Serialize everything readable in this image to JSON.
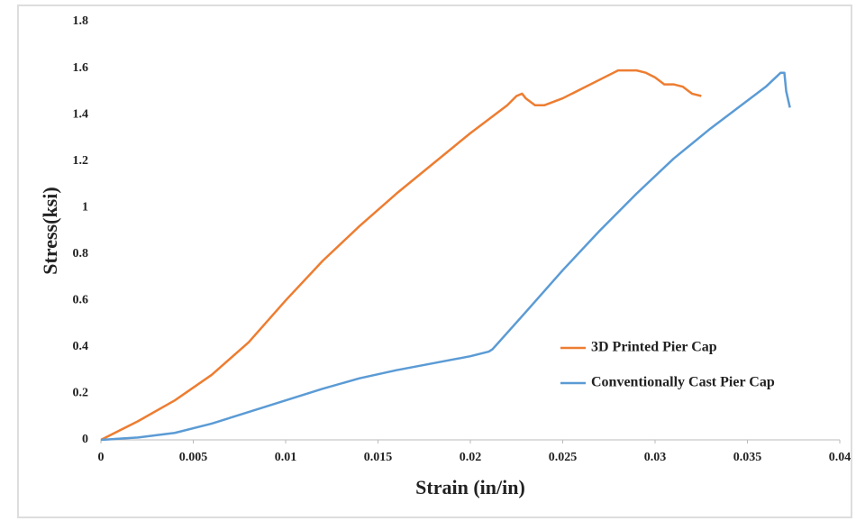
{
  "chart_data": {
    "type": "line",
    "x_label": "Strain (in/in)",
    "y_label": "Stress(ksi)",
    "xlim": [
      0,
      0.04
    ],
    "ylim": [
      0,
      1.8
    ],
    "xticks": [
      0,
      0.005,
      0.01,
      0.015,
      0.02,
      0.025,
      0.03,
      0.035,
      0.04
    ],
    "yticks": [
      0,
      0.2,
      0.4,
      0.6,
      0.8,
      1,
      1.2,
      1.4,
      1.6,
      1.8
    ],
    "grid": false,
    "legend": "center right",
    "series": [
      {
        "name": "3D Printed Pier Cap",
        "color": "#ed7d31",
        "x": [
          0,
          0.002,
          0.004,
          0.006,
          0.008,
          0.01,
          0.012,
          0.014,
          0.016,
          0.018,
          0.02,
          0.022,
          0.0225,
          0.0228,
          0.023,
          0.0235,
          0.024,
          0.025,
          0.026,
          0.027,
          0.028,
          0.029,
          0.0295,
          0.03,
          0.0305,
          0.031,
          0.0315,
          0.032,
          0.0325
        ],
        "values": [
          0,
          0.08,
          0.17,
          0.28,
          0.42,
          0.6,
          0.77,
          0.92,
          1.06,
          1.19,
          1.32,
          1.44,
          1.48,
          1.49,
          1.47,
          1.44,
          1.44,
          1.47,
          1.51,
          1.55,
          1.59,
          1.59,
          1.58,
          1.56,
          1.53,
          1.53,
          1.52,
          1.49,
          1.48
        ]
      },
      {
        "name": "Conventionally Cast Pier Cap",
        "color": "#5b9bd5",
        "x": [
          0,
          0.002,
          0.004,
          0.006,
          0.008,
          0.01,
          0.012,
          0.014,
          0.016,
          0.018,
          0.02,
          0.021,
          0.0212,
          0.023,
          0.025,
          0.027,
          0.029,
          0.031,
          0.033,
          0.035,
          0.036,
          0.0368,
          0.037,
          0.0371,
          0.0373
        ],
        "values": [
          0,
          0.01,
          0.03,
          0.07,
          0.12,
          0.17,
          0.22,
          0.265,
          0.3,
          0.33,
          0.36,
          0.38,
          0.39,
          0.55,
          0.73,
          0.9,
          1.06,
          1.21,
          1.34,
          1.46,
          1.52,
          1.58,
          1.58,
          1.5,
          1.43
        ]
      }
    ]
  }
}
